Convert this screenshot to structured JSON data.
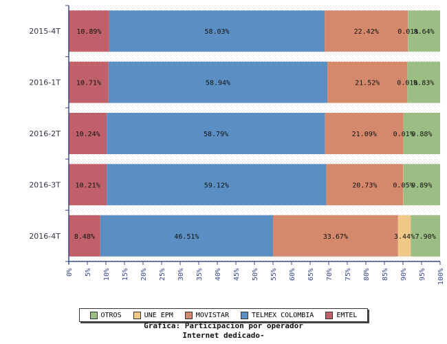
{
  "chart_data": {
    "type": "bar",
    "orientation": "horizontal",
    "stacked": true,
    "categories": [
      "2015-4T",
      "2016-1T",
      "2016-2T",
      "2016-3T",
      "2016-4T"
    ],
    "series": [
      {
        "name": "EMTEL",
        "color": "#c0606a",
        "values": [
          10.89,
          10.71,
          10.24,
          10.21,
          8.48
        ],
        "labels": [
          "10.89%",
          "10.71%",
          "10.24%",
          "10.21%",
          "8.48%"
        ]
      },
      {
        "name": "TELMEX COLOMBIA",
        "color": "#5b8fc4",
        "values": [
          58.03,
          58.94,
          58.79,
          59.12,
          46.51
        ],
        "labels": [
          "58.03%",
          "58.94%",
          "58.79%",
          "59.12%",
          "46.51%"
        ]
      },
      {
        "name": "MOVISTAR",
        "color": "#d4886c",
        "values": [
          22.42,
          21.52,
          21.09,
          20.73,
          33.67
        ],
        "labels": [
          "22.42%",
          "21.52%",
          "21.09%",
          "20.73%",
          "33.67%"
        ]
      },
      {
        "name": "UNE EPM",
        "color": "#f0c888",
        "values": [
          0.01,
          0.01,
          0.01,
          0.05,
          3.44
        ],
        "labels": [
          "0.01%",
          "0.01%",
          "0.01%",
          "0.05%",
          "3.44%"
        ]
      },
      {
        "name": "OTROS",
        "color": "#9cbd84",
        "values": [
          8.64,
          8.83,
          9.88,
          9.89,
          7.9
        ],
        "labels": [
          "8.64%",
          "8.83%",
          "9.88%",
          "9.89%",
          "7.90%"
        ]
      }
    ],
    "xlim": [
      0,
      100
    ],
    "x_ticks": [
      "0%",
      "5%",
      "10%",
      "15%",
      "20%",
      "25%",
      "30%",
      "35%",
      "40%",
      "45%",
      "50%",
      "55%",
      "60%",
      "65%",
      "70%",
      "75%",
      "80%",
      "85%",
      "90%",
      "95%",
      "100%"
    ],
    "legend_order": [
      "OTROS",
      "UNE EPM",
      "MOVISTAR",
      "TELMEX COLOMBIA",
      "EMTEL"
    ],
    "legend_position": "bottom",
    "title": "Grafica: Participacion por operador",
    "subtitle": "Internet dedicado-"
  }
}
